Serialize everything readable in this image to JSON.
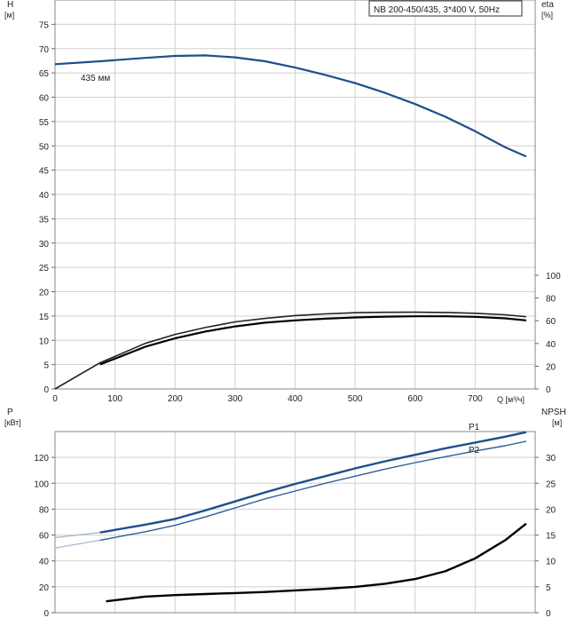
{
  "chart_data": [
    {
      "type": "line",
      "title": "NB 200-450/435, 3*400 V, 50Hz",
      "ylabel_left": "H",
      "ylabel_left_unit": "[м]",
      "ylabel_right": "eta",
      "ylabel_right_unit": "[%]",
      "xlabel": "Q [м³/ч]",
      "xlim": [
        0,
        800
      ],
      "ylim_left": [
        0,
        80
      ],
      "ylim_right": [
        0,
        100
      ],
      "x_ticks": [
        "0",
        "100",
        "200",
        "300",
        "400",
        "500",
        "600",
        "700"
      ],
      "y_ticks_left": [
        "0",
        "5",
        "10",
        "15",
        "20",
        "25",
        "30",
        "35",
        "40",
        "45",
        "50",
        "55",
        "60",
        "65",
        "70",
        "75"
      ],
      "y_ticks_right": [
        "0",
        "20",
        "40",
        "60",
        "80",
        "100"
      ],
      "grid": true,
      "series": [
        {
          "name": "435 мм",
          "axis": "left",
          "color": "#1f4e8c",
          "x": [
            0,
            75,
            150,
            200,
            250,
            300,
            350,
            400,
            450,
            500,
            550,
            600,
            650,
            700,
            750,
            785
          ],
          "values": [
            66.8,
            67.4,
            68.1,
            68.5,
            68.6,
            68.2,
            67.4,
            66.1,
            64.6,
            62.9,
            60.9,
            58.6,
            56.0,
            53.0,
            49.7,
            47.8
          ]
        },
        {
          "name": "",
          "axis": "right",
          "color": "#222222",
          "x": [
            0,
            75,
            150,
            200,
            250,
            300,
            350,
            400,
            450,
            500,
            550,
            600,
            650,
            700,
            750,
            785
          ],
          "values": [
            0,
            23,
            40,
            48,
            54,
            59,
            62,
            64.5,
            66,
            67,
            67.4,
            67.5,
            67.3,
            66.6,
            65.2,
            63.5
          ]
        },
        {
          "name": "",
          "axis": "right",
          "color": "#000000",
          "x": [
            75,
            150,
            200,
            250,
            300,
            350,
            400,
            450,
            500,
            550,
            600,
            650,
            700,
            750,
            785
          ],
          "values": [
            21.5,
            37,
            44.5,
            50.5,
            55,
            58.3,
            60.3,
            61.8,
            62.9,
            63.6,
            63.9,
            63.9,
            63.4,
            62.1,
            60.3
          ]
        }
      ]
    },
    {
      "type": "line",
      "ylabel_left": "P",
      "ylabel_left_unit": "[кВт]",
      "ylabel_right": "NPSH",
      "ylabel_right_unit": "[м]",
      "xlim": [
        0,
        800
      ],
      "ylim_left": [
        0,
        140
      ],
      "ylim_right": [
        0,
        35
      ],
      "y_ticks_left": [
        "0",
        "20",
        "40",
        "60",
        "80",
        "100",
        "120"
      ],
      "y_ticks_right": [
        "0",
        "5",
        "10",
        "15",
        "20",
        "25",
        "30"
      ],
      "grid": true,
      "series": [
        {
          "name": "P1",
          "axis": "left",
          "color": "#1f4e8c",
          "x": [
            75,
            150,
            200,
            250,
            300,
            350,
            400,
            450,
            500,
            550,
            600,
            650,
            700,
            750,
            785
          ],
          "values": [
            62,
            68,
            72.5,
            79,
            86,
            93,
            99.5,
            105.5,
            111.5,
            117,
            122,
            127,
            131.5,
            136,
            139.5
          ]
        },
        {
          "name": "P2",
          "axis": "left",
          "color": "#2c5f99",
          "x": [
            75,
            150,
            200,
            250,
            300,
            350,
            400,
            450,
            500,
            550,
            600,
            650,
            700,
            750,
            785
          ],
          "values": [
            56,
            62.5,
            67.5,
            74,
            81,
            88,
            94,
            100,
            105.5,
            111,
            116,
            120.5,
            125,
            129,
            132.5
          ]
        },
        {
          "name": "",
          "axis": "right",
          "color": "#000000",
          "x": [
            85,
            150,
            200,
            250,
            300,
            350,
            400,
            450,
            500,
            550,
            600,
            650,
            700,
            750,
            785
          ],
          "values": [
            2.2,
            3.1,
            3.4,
            3.6,
            3.8,
            4.0,
            4.3,
            4.6,
            5.0,
            5.6,
            6.5,
            8.0,
            10.5,
            14.0,
            17.2
          ]
        }
      ]
    }
  ]
}
